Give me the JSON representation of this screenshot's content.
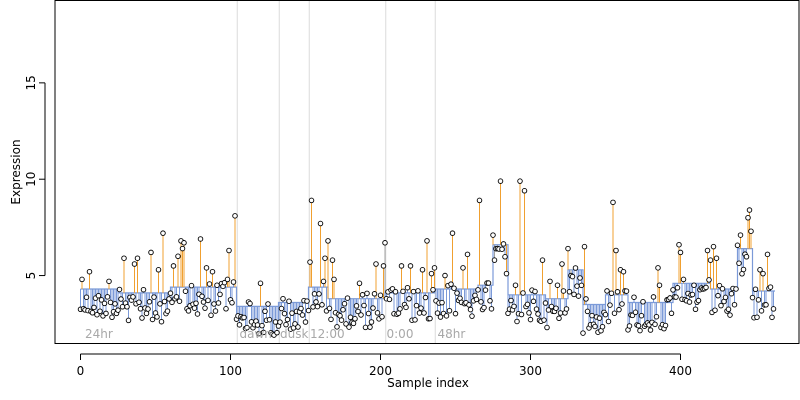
{
  "chart_data": {
    "type": "scatter",
    "xlabel": "Sample index",
    "ylabel": "Expression",
    "xlim": [
      -17,
      479
    ],
    "ylim": [
      1.5,
      19.3
    ],
    "x_ticks": [
      0,
      100,
      200,
      300,
      400
    ],
    "y_ticks": [
      5,
      10,
      15
    ],
    "baseline_color": "#7b9ad8",
    "up_color": "#f0a030",
    "gray_color": "#a0a0a0",
    "point_color": "#000000",
    "region_divider_color": "#dcdcdc",
    "regions": [
      {
        "label": "24hr",
        "start": 0,
        "end": 104,
        "label_x": 3
      },
      {
        "label": "dawn",
        "start": 105,
        "end": 132,
        "label_x": 106
      },
      {
        "label": "dusk",
        "start": 133,
        "end": 152,
        "label_x": 133
      },
      {
        "label": "12:00",
        "start": 153,
        "end": 203,
        "label_x": 153
      },
      {
        "label": "0:00",
        "start": 204,
        "end": 236,
        "label_x": 204
      },
      {
        "label": "48hr",
        "start": 237,
        "end": 462,
        "label_x": 238
      }
    ],
    "dividers": [
      104.5,
      132.5,
      152.5,
      203.5,
      236.5
    ],
    "baseline_steps": [
      {
        "x0": 0,
        "x1": 25,
        "y": 4.3
      },
      {
        "x0": 25,
        "x1": 60,
        "y": 4.1
      },
      {
        "x0": 60,
        "x1": 104,
        "y": 4.4
      },
      {
        "x0": 104,
        "x1": 132,
        "y": 3.4
      },
      {
        "x0": 132,
        "x1": 152,
        "y": 3.6
      },
      {
        "x0": 152,
        "x1": 165,
        "y": 4.4
      },
      {
        "x0": 165,
        "x1": 203,
        "y": 3.8
      },
      {
        "x0": 203,
        "x1": 236,
        "y": 4.1
      },
      {
        "x0": 236,
        "x1": 265,
        "y": 4.3
      },
      {
        "x0": 265,
        "x1": 275,
        "y": 4.5
      },
      {
        "x0": 275,
        "x1": 285,
        "y": 6.6
      },
      {
        "x0": 285,
        "x1": 310,
        "y": 4.0
      },
      {
        "x0": 310,
        "x1": 325,
        "y": 3.8
      },
      {
        "x0": 325,
        "x1": 335,
        "y": 5.3
      },
      {
        "x0": 335,
        "x1": 350,
        "y": 3.5
      },
      {
        "x0": 350,
        "x1": 365,
        "y": 4.0
      },
      {
        "x0": 365,
        "x1": 395,
        "y": 3.6
      },
      {
        "x0": 395,
        "x1": 420,
        "y": 4.6
      },
      {
        "x0": 420,
        "x1": 438,
        "y": 4.3
      },
      {
        "x0": 438,
        "x1": 448,
        "y": 6.4
      },
      {
        "x0": 448,
        "x1": 463,
        "y": 4.2
      }
    ],
    "highlights": [
      [
        1,
        4.8
      ],
      [
        6,
        5.2
      ],
      [
        19,
        4.7
      ],
      [
        29,
        5.9
      ],
      [
        36,
        5.6
      ],
      [
        38,
        5.9
      ],
      [
        47,
        6.2
      ],
      [
        52,
        5.3
      ],
      [
        55,
        7.2
      ],
      [
        62,
        5.5
      ],
      [
        65,
        6.0
      ],
      [
        67,
        6.8
      ],
      [
        68,
        6.4
      ],
      [
        69,
        6.7
      ],
      [
        80,
        6.9
      ],
      [
        84,
        5.4
      ],
      [
        88,
        5.2
      ],
      [
        91,
        4.5
      ],
      [
        98,
        4.8
      ],
      [
        99,
        6.3
      ],
      [
        103,
        8.1
      ],
      [
        120,
        4.6
      ],
      [
        153,
        5.7
      ],
      [
        154,
        8.9
      ],
      [
        160,
        7.7
      ],
      [
        163,
        5.9
      ],
      [
        165,
        6.8
      ],
      [
        168,
        5.8
      ],
      [
        169,
        4.8
      ],
      [
        186,
        4.6
      ],
      [
        197,
        5.6
      ],
      [
        202,
        5.5
      ],
      [
        214,
        5.5
      ],
      [
        220,
        5.5
      ],
      [
        228,
        5.3
      ],
      [
        231,
        6.8
      ],
      [
        234,
        5.1
      ],
      [
        236,
        5.4
      ],
      [
        243,
        5.0
      ],
      [
        248,
        7.2
      ],
      [
        255,
        5.4
      ],
      [
        258,
        6.1
      ],
      [
        266,
        8.9
      ],
      [
        275,
        7.1
      ],
      [
        280,
        9.9
      ],
      [
        284,
        5.1
      ],
      [
        290,
        4.5
      ],
      [
        293,
        9.9
      ],
      [
        296,
        9.4
      ],
      [
        308,
        5.8
      ],
      [
        313,
        4.7
      ],
      [
        318,
        4.5
      ],
      [
        321,
        5.6
      ],
      [
        322,
        4.2
      ],
      [
        325,
        6.4
      ],
      [
        336,
        6.5
      ],
      [
        355,
        8.8
      ],
      [
        357,
        6.3
      ],
      [
        360,
        5.3
      ],
      [
        362,
        5.2
      ],
      [
        385,
        5.4
      ],
      [
        386,
        4.5
      ],
      [
        399,
        6.6
      ],
      [
        400,
        6.2
      ],
      [
        402,
        6.3
      ],
      [
        409,
        4.5
      ],
      [
        402,
        4.8
      ],
      [
        418,
        6.3
      ],
      [
        420,
        5.8
      ],
      [
        422,
        6.5
      ],
      [
        424,
        5.9
      ],
      [
        440,
        7.1
      ],
      [
        445,
        8.0
      ],
      [
        446,
        8.4
      ],
      [
        447,
        7.3
      ],
      [
        453,
        5.3
      ],
      [
        455,
        5.1
      ],
      [
        458,
        6.1
      ]
    ],
    "gray_spikes": [
      [
        203,
        6.7
      ],
      [
        276,
        5.8
      ],
      [
        278,
        6.4
      ],
      [
        327,
        5.0
      ]
    ]
  }
}
